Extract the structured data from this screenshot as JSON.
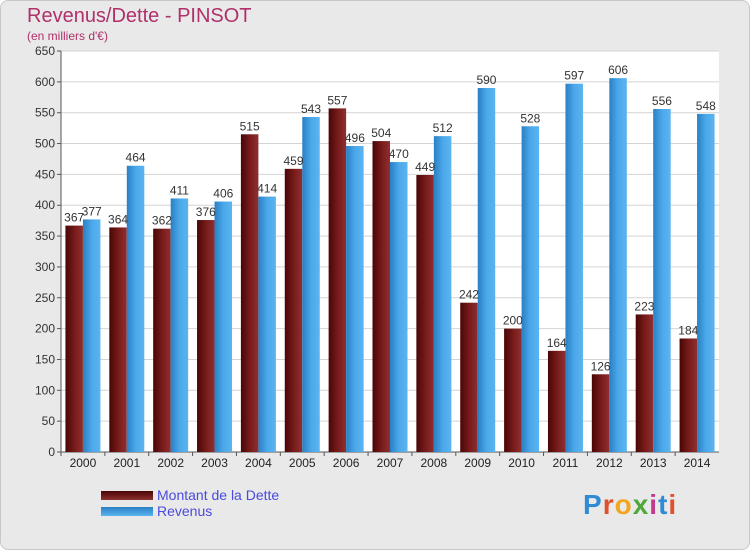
{
  "title": "Revenus/Dette - PINSOT",
  "subtitle": "(en milliers d'€)",
  "logo": {
    "text": "Proxiti",
    "letter_colors": [
      "#2f8bd4",
      "#e0502a",
      "#f2a51e",
      "#4ea83a",
      "#c03a8e",
      "#2f8bd4",
      "#e0502a"
    ]
  },
  "colors": {
    "dette": "#6e1515",
    "revenus": "#3d9ee0",
    "title": "#b0306a",
    "legend_text": "#4a4adf",
    "plot_bg": "#ffffff",
    "frame_bg": "#e9e9e9"
  },
  "chart_data": {
    "type": "bar",
    "title": "Revenus/Dette - PINSOT",
    "subtitle": "(en milliers d'€)",
    "xlabel": "",
    "ylabel": "",
    "ylim": [
      0,
      650
    ],
    "y_ticks": [
      0,
      50,
      100,
      150,
      200,
      250,
      300,
      350,
      400,
      450,
      500,
      550,
      600,
      650
    ],
    "grid": true,
    "legend_position": "bottom-left",
    "categories": [
      "2000",
      "2001",
      "2002",
      "2003",
      "2004",
      "2005",
      "2006",
      "2007",
      "2008",
      "2009",
      "2010",
      "2011",
      "2012",
      "2013",
      "2014"
    ],
    "series": [
      {
        "name": "Montant de la Dette",
        "values": [
          367,
          364,
          362,
          376,
          515,
          459,
          557,
          504,
          449,
          242,
          200,
          164,
          126,
          223,
          184
        ]
      },
      {
        "name": "Revenus",
        "values": [
          377,
          464,
          411,
          406,
          414,
          543,
          496,
          470,
          512,
          590,
          528,
          597,
          606,
          556,
          548
        ]
      }
    ]
  }
}
